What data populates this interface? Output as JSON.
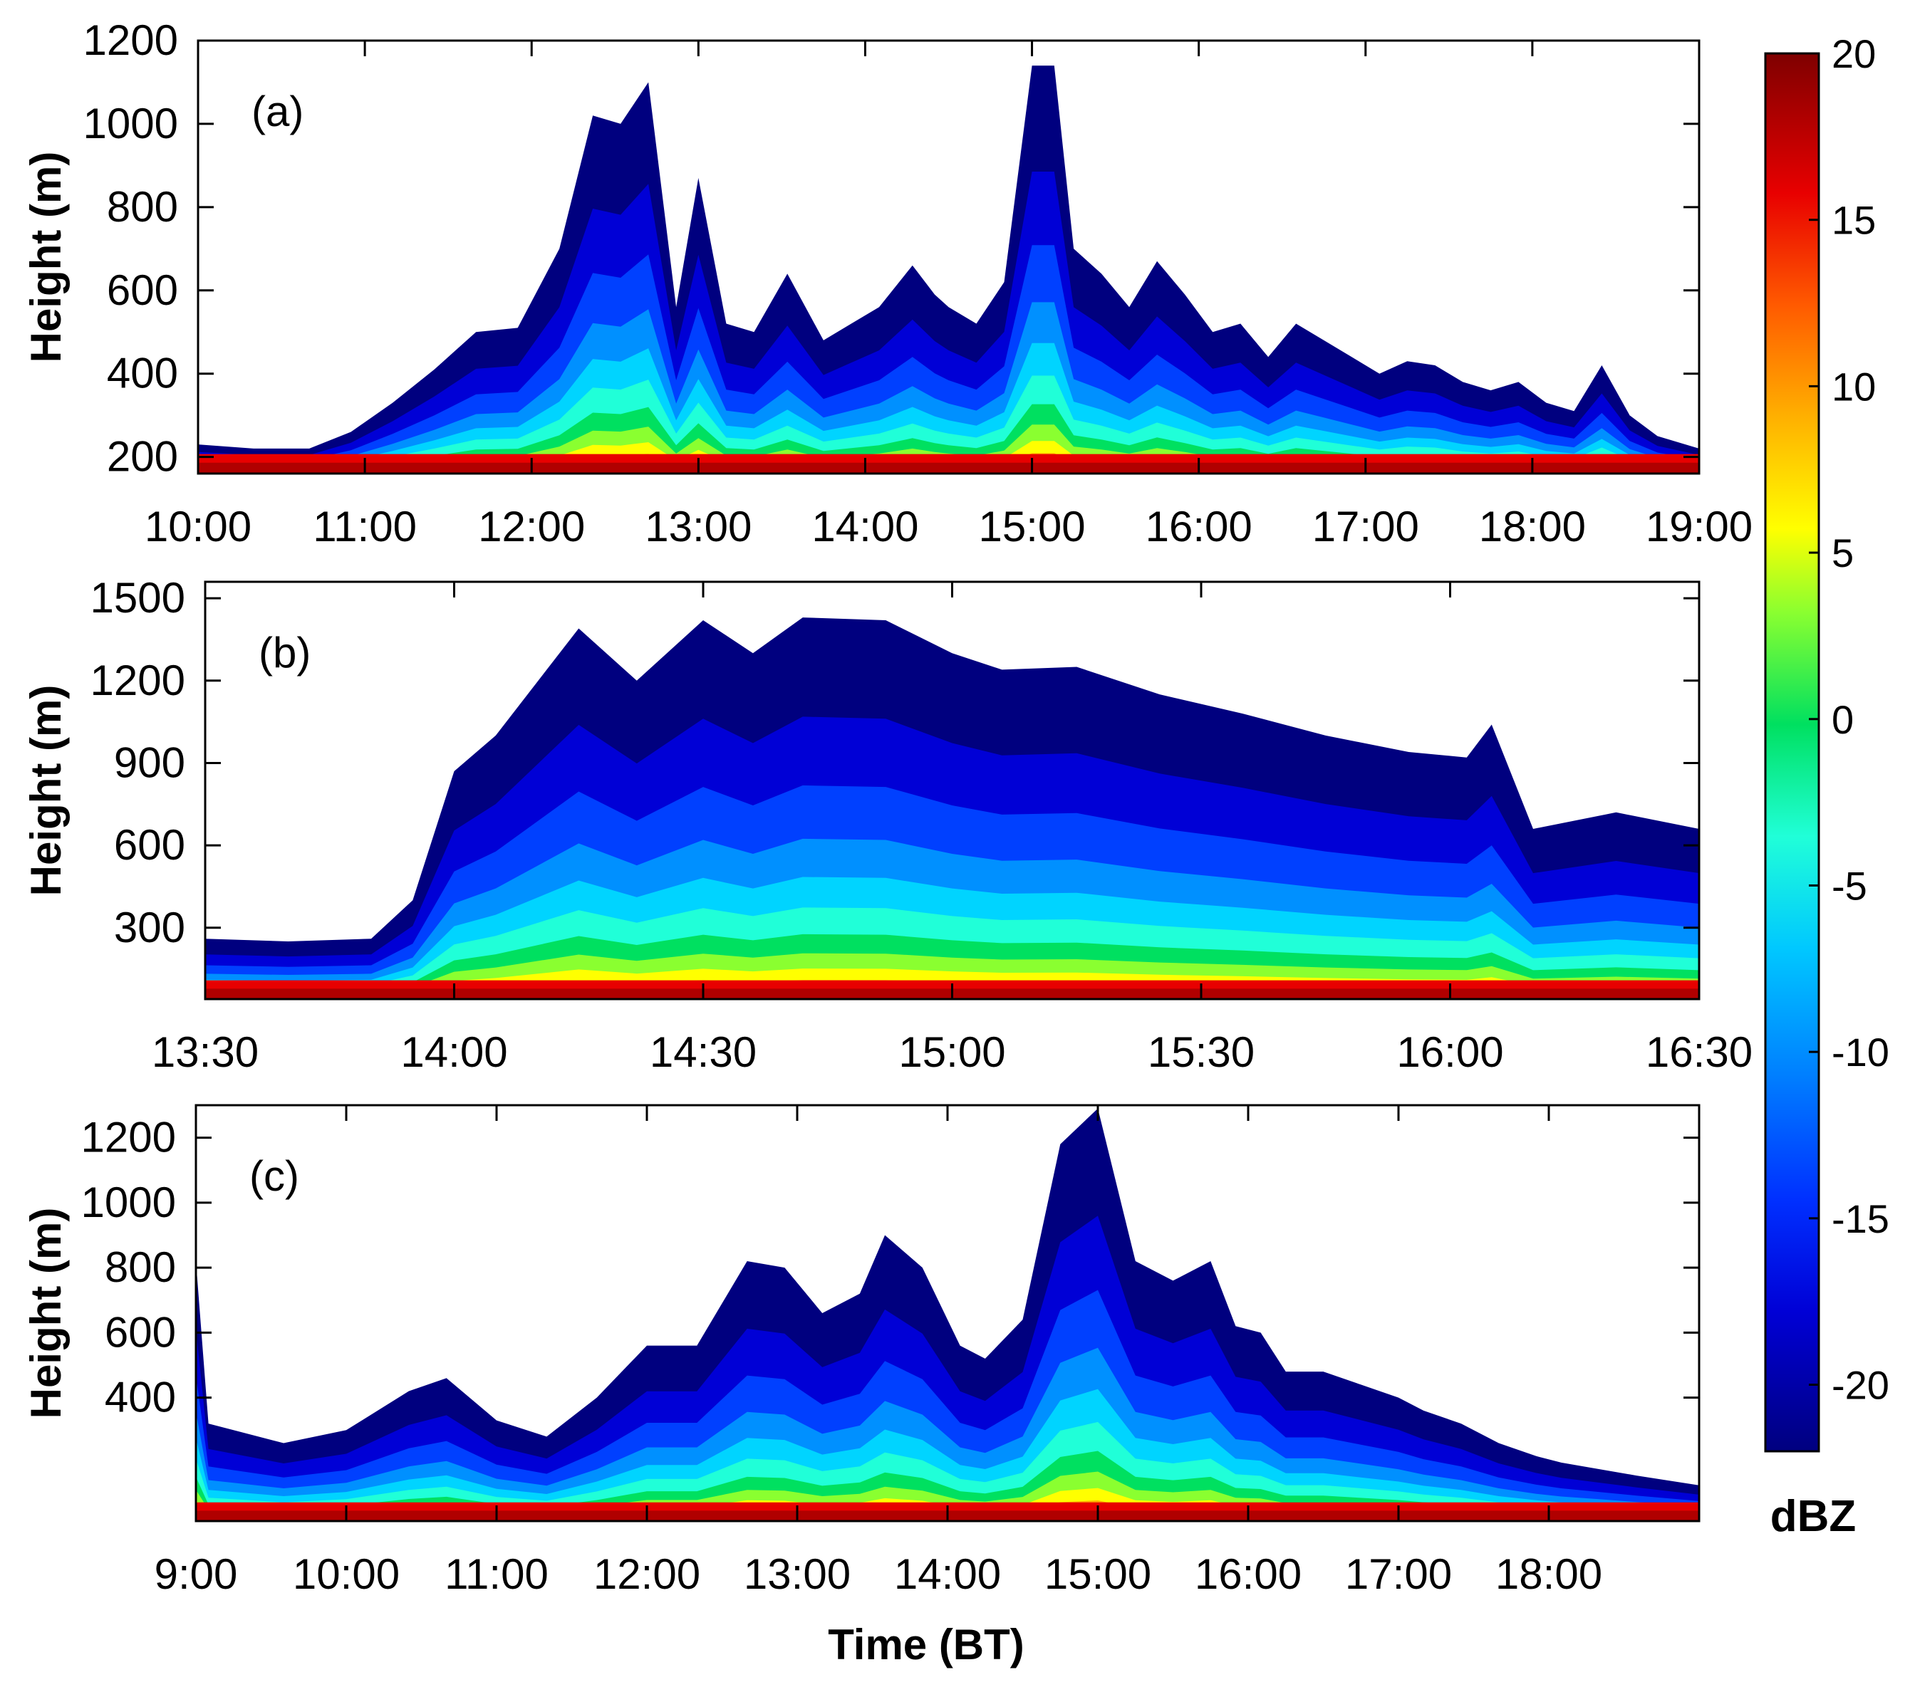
{
  "chart_data": [
    {
      "type": "heatmap",
      "panel_label": "(a)",
      "ylabel": "Height (m)",
      "ylim": [
        160,
        1200
      ],
      "yticks": [
        200,
        400,
        600,
        800,
        1000,
        1200
      ],
      "xlim_min": [
        600,
        1140
      ],
      "xticks_min": [
        600,
        660,
        720,
        780,
        840,
        900,
        960,
        1020,
        1080,
        1140
      ],
      "xtick_labels": [
        "10:00",
        "11:00",
        "12:00",
        "13:00",
        "14:00",
        "15:00",
        "16:00",
        "17:00",
        "18:00",
        "19:00"
      ],
      "echo_top_profile": {
        "time_min": [
          600,
          620,
          640,
          655,
          670,
          685,
          700,
          715,
          730,
          742,
          752,
          762,
          772,
          780,
          790,
          800,
          812,
          825,
          835,
          845,
          857,
          865,
          870,
          880,
          890,
          900,
          908,
          915,
          925,
          935,
          945,
          955,
          965,
          975,
          985,
          995,
          1005,
          1015,
          1025,
          1035,
          1045,
          1055,
          1065,
          1075,
          1085,
          1095,
          1105,
          1115,
          1125,
          1140
        ],
        "top_m": [
          230,
          220,
          220,
          260,
          330,
          410,
          500,
          510,
          700,
          1020,
          1000,
          1100,
          560,
          870,
          520,
          500,
          640,
          480,
          520,
          560,
          660,
          590,
          560,
          520,
          620,
          1140,
          1140,
          700,
          640,
          560,
          670,
          590,
          500,
          520,
          440,
          520,
          480,
          440,
          400,
          430,
          420,
          380,
          360,
          380,
          330,
          310,
          420,
          300,
          250,
          220
        ]
      },
      "colorbar_ref": "dBZ"
    },
    {
      "type": "heatmap",
      "panel_label": "(b)",
      "ylabel": "Height (m)",
      "ylim": [
        40,
        1560
      ],
      "yticks": [
        300,
        600,
        900,
        1200,
        1500
      ],
      "xlim_min": [
        810,
        990
      ],
      "xticks_min": [
        810,
        840,
        870,
        900,
        930,
        960,
        990
      ],
      "xtick_labels": [
        "13:30",
        "14:00",
        "14:30",
        "15:00",
        "15:30",
        "16:00",
        "16:30"
      ],
      "echo_top_profile": {
        "time_min": [
          810,
          820,
          830,
          835,
          840,
          845,
          855,
          862,
          870,
          876,
          882,
          892,
          900,
          906,
          915,
          925,
          935,
          945,
          955,
          962,
          965,
          970,
          980,
          990
        ],
        "top_m": [
          260,
          250,
          260,
          400,
          870,
          1000,
          1390,
          1200,
          1420,
          1300,
          1430,
          1420,
          1300,
          1240,
          1250,
          1150,
          1080,
          1000,
          940,
          920,
          1040,
          660,
          720,
          660
        ]
      },
      "colorbar_ref": "dBZ"
    },
    {
      "type": "heatmap",
      "panel_label": "(c)",
      "xlabel": "Time (BT)",
      "ylabel": "Height (m)",
      "ylim": [
        20,
        1300
      ],
      "yticks": [
        400,
        600,
        800,
        1000,
        1200
      ],
      "xlim_min": [
        540,
        1140
      ],
      "xticks_min": [
        540,
        600,
        660,
        720,
        780,
        840,
        900,
        960,
        1020,
        1080
      ],
      "xtick_labels": [
        "9:00",
        "10:00",
        "11:00",
        "12:00",
        "13:00",
        "14:00",
        "15:00",
        "16:00",
        "17:00",
        "18:00"
      ],
      "echo_top_profile": {
        "time_min": [
          540,
          545,
          555,
          575,
          600,
          625,
          640,
          660,
          680,
          700,
          720,
          740,
          760,
          775,
          790,
          805,
          815,
          830,
          845,
          855,
          870,
          885,
          900,
          915,
          930,
          945,
          955,
          965,
          975,
          990,
          1005,
          1020,
          1030,
          1045,
          1060,
          1075,
          1085,
          1100,
          1115,
          1140
        ],
        "top_m": [
          820,
          320,
          300,
          260,
          300,
          420,
          460,
          330,
          280,
          400,
          560,
          560,
          820,
          800,
          660,
          720,
          900,
          800,
          560,
          520,
          640,
          1180,
          1290,
          820,
          760,
          820,
          620,
          600,
          480,
          480,
          440,
          400,
          360,
          320,
          260,
          220,
          200,
          180,
          160,
          130
        ]
      },
      "colorbar_ref": "dBZ"
    }
  ],
  "colorbar": {
    "unit": "dBZ",
    "min": -22,
    "max": 20,
    "ticks": [
      20,
      15,
      10,
      5,
      0,
      -5,
      -10,
      -15,
      -20
    ],
    "tick_labels": [
      "20",
      "15",
      "10",
      "5",
      "0",
      "-5",
      "-10",
      "-15",
      "-20"
    ],
    "colors": [
      "#00007f",
      "#0000d6",
      "#0040ff",
      "#0090ff",
      "#00d4ff",
      "#20ffd8",
      "#00e060",
      "#8aff30",
      "#ffff00",
      "#ffb000",
      "#ff5a00",
      "#e80000",
      "#7f0000"
    ]
  }
}
